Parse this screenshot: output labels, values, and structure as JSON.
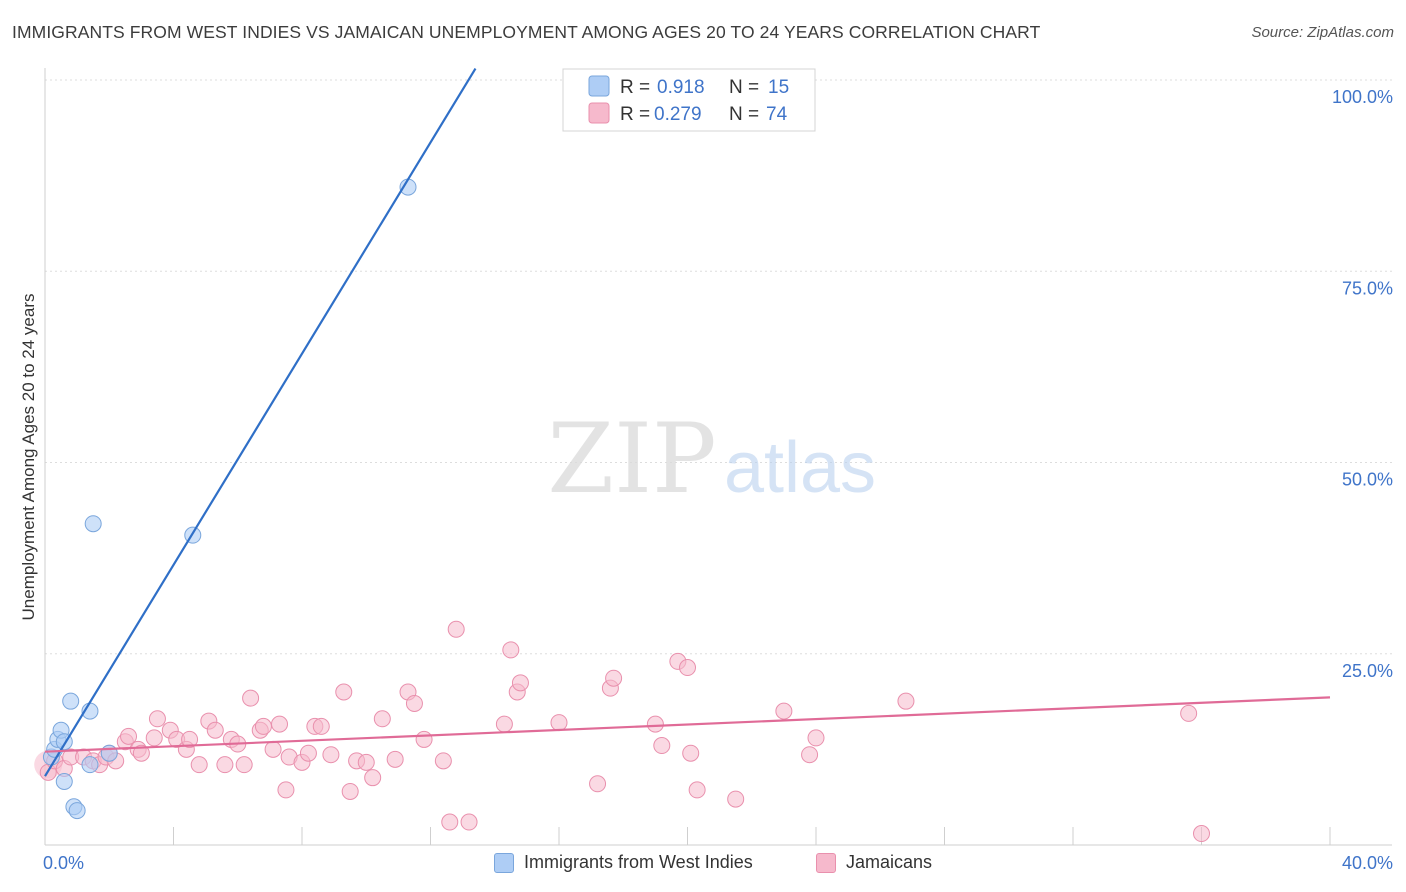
{
  "title": "IMMIGRANTS FROM WEST INDIES VS JAMAICAN UNEMPLOYMENT AMONG AGES 20 TO 24 YEARS CORRELATION CHART",
  "source": "Source: ZipAtlas.com",
  "watermark": {
    "zip": "ZIP",
    "atlas": "atlas"
  },
  "colors": {
    "blue_fill": "#aecdf5",
    "blue_stroke": "#7aa6dc",
    "blue_line": "#2f6fc7",
    "pink_fill": "#f6b9cc",
    "pink_stroke": "#e990ad",
    "pink_line": "#e06b97",
    "value_text": "#3f74c9",
    "grid": "#dddddd"
  },
  "legend_top": [
    {
      "r_label": "R =",
      "r_value": "0.918",
      "n_label": "N =",
      "n_value": "15"
    },
    {
      "r_label": "R =",
      "r_value": "0.279",
      "n_label": "N =",
      "n_value": "74"
    }
  ],
  "chart_data": {
    "type": "scatter",
    "title": "IMMIGRANTS FROM WEST INDIES VS JAMAICAN UNEMPLOYMENT AMONG AGES 20 TO 24 YEARS CORRELATION CHART",
    "xlabel": "",
    "ylabel": "Unemployment Among Ages 20 to 24 years",
    "xlim": [
      0,
      40
    ],
    "ylim": [
      0,
      100
    ],
    "x_tick_labels": [
      "0.0%",
      "40.0%"
    ],
    "y_ticks": [
      25,
      50,
      75,
      100
    ],
    "y_tick_labels": [
      "25.0%",
      "50.0%",
      "75.0%",
      "100.0%"
    ],
    "grid": true,
    "series": [
      {
        "name": "Immigrants from West Indies",
        "R": 0.918,
        "N": 15,
        "trendline": {
          "x": [
            0.0,
            13.4
          ],
          "y": [
            9.0,
            101.5
          ]
        },
        "points": [
          [
            0.2,
            11.5
          ],
          [
            0.3,
            12.5
          ],
          [
            0.4,
            13.8
          ],
          [
            0.5,
            15.0
          ],
          [
            0.6,
            13.5
          ],
          [
            0.6,
            8.3
          ],
          [
            0.8,
            18.8
          ],
          [
            0.9,
            5.0
          ],
          [
            1.0,
            4.5
          ],
          [
            1.4,
            10.5
          ],
          [
            1.4,
            17.5
          ],
          [
            1.5,
            42.0
          ],
          [
            2.0,
            12.0
          ],
          [
            4.6,
            40.5
          ],
          [
            11.3,
            86.0
          ]
        ]
      },
      {
        "name": "Jamaicans",
        "R": 0.279,
        "N": 74,
        "trendline": {
          "x": [
            0.0,
            40.0
          ],
          "y": [
            12.2,
            19.3
          ]
        },
        "points": [
          [
            0.1,
            9.5
          ],
          [
            0.3,
            11.0
          ],
          [
            0.6,
            10.0
          ],
          [
            0.8,
            11.5
          ],
          [
            1.2,
            11.5
          ],
          [
            1.5,
            11.0
          ],
          [
            1.7,
            10.5
          ],
          [
            1.9,
            11.5
          ],
          [
            2.0,
            12.0
          ],
          [
            2.2,
            11.0
          ],
          [
            2.5,
            13.5
          ],
          [
            2.6,
            14.2
          ],
          [
            2.9,
            12.5
          ],
          [
            3.0,
            12.0
          ],
          [
            3.4,
            14.0
          ],
          [
            3.5,
            16.5
          ],
          [
            3.9,
            15.0
          ],
          [
            4.1,
            13.8
          ],
          [
            4.4,
            12.5
          ],
          [
            4.5,
            13.8
          ],
          [
            4.8,
            10.5
          ],
          [
            5.1,
            16.2
          ],
          [
            5.3,
            15.0
          ],
          [
            5.6,
            10.5
          ],
          [
            5.8,
            13.8
          ],
          [
            6.0,
            13.2
          ],
          [
            6.2,
            10.5
          ],
          [
            6.4,
            19.2
          ],
          [
            6.7,
            15.0
          ],
          [
            6.8,
            15.5
          ],
          [
            7.1,
            12.5
          ],
          [
            7.3,
            15.8
          ],
          [
            7.5,
            7.2
          ],
          [
            7.6,
            11.5
          ],
          [
            8.0,
            10.8
          ],
          [
            8.2,
            12.0
          ],
          [
            8.4,
            15.5
          ],
          [
            8.6,
            15.5
          ],
          [
            8.9,
            11.8
          ],
          [
            9.3,
            20.0
          ],
          [
            9.5,
            7.0
          ],
          [
            9.7,
            11.0
          ],
          [
            10.0,
            10.8
          ],
          [
            10.2,
            8.8
          ],
          [
            10.5,
            16.5
          ],
          [
            10.9,
            11.2
          ],
          [
            11.3,
            20.0
          ],
          [
            11.5,
            18.5
          ],
          [
            11.8,
            13.8
          ],
          [
            12.4,
            11.0
          ],
          [
            12.6,
            3.0
          ],
          [
            12.8,
            28.2
          ],
          [
            13.2,
            3.0
          ],
          [
            14.3,
            15.8
          ],
          [
            14.5,
            25.5
          ],
          [
            14.7,
            20.0
          ],
          [
            14.8,
            21.2
          ],
          [
            16.0,
            16.0
          ],
          [
            17.2,
            8.0
          ],
          [
            17.6,
            20.5
          ],
          [
            17.7,
            21.8
          ],
          [
            19.0,
            15.8
          ],
          [
            19.2,
            13.0
          ],
          [
            19.7,
            24.0
          ],
          [
            20.0,
            23.2
          ],
          [
            20.1,
            12.0
          ],
          [
            20.3,
            7.2
          ],
          [
            21.5,
            6.0
          ],
          [
            23.0,
            17.5
          ],
          [
            23.8,
            11.8
          ],
          [
            24.0,
            14.0
          ],
          [
            26.8,
            18.8
          ],
          [
            35.6,
            17.2
          ],
          [
            36.0,
            1.5
          ]
        ]
      }
    ]
  }
}
